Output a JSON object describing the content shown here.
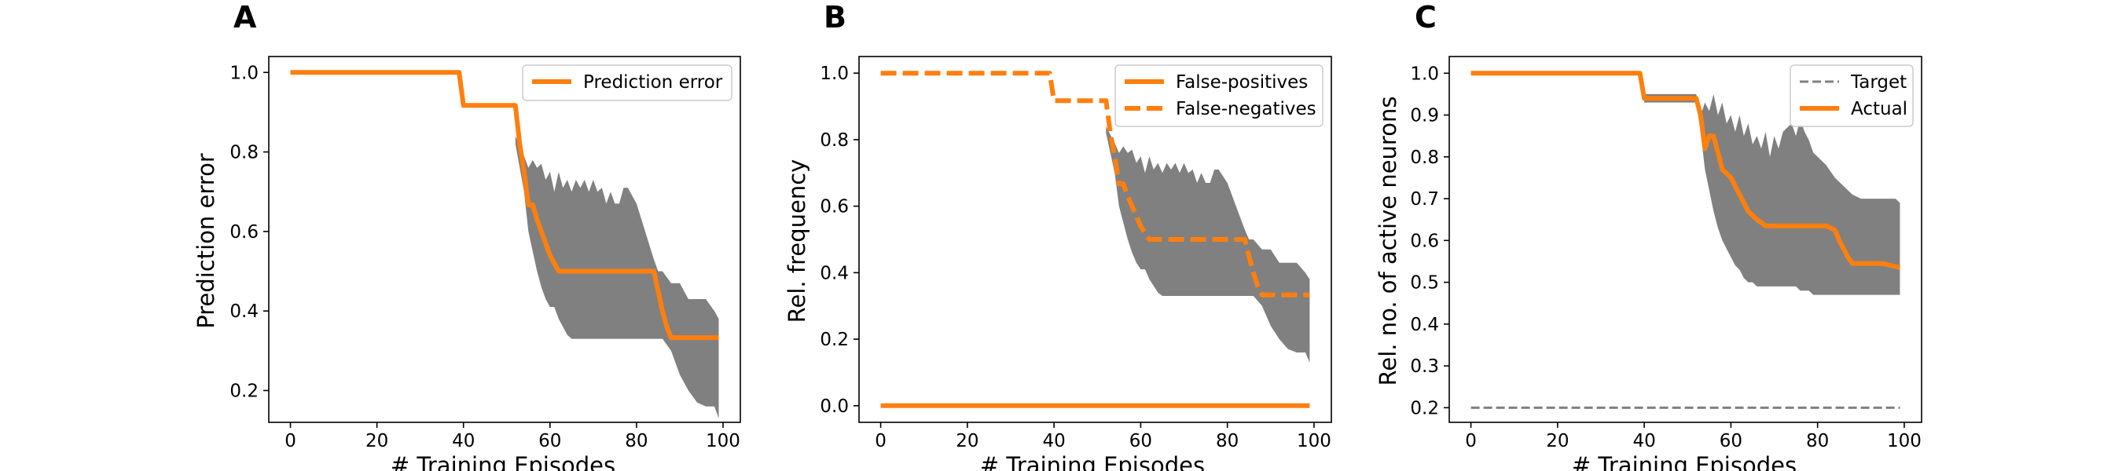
{
  "figure": {
    "panels": [
      {
        "letter": "A",
        "xlabel": "# Training Episodes",
        "ylabel": "Prediction error",
        "legend": [
          {
            "label": "Prediction error",
            "style": "solid",
            "color": "#ff7f0e"
          }
        ]
      },
      {
        "letter": "B",
        "xlabel": "# Training Episodes",
        "ylabel": "Rel. frequency",
        "legend": [
          {
            "label": "False-positives",
            "style": "solid",
            "color": "#ff7f0e"
          },
          {
            "label": "False-negatives",
            "style": "dashed",
            "color": "#ff7f0e"
          }
        ]
      },
      {
        "letter": "C",
        "xlabel": "# Training Episodes",
        "ylabel": "Rel. no. of active neurons",
        "legend": [
          {
            "label": "Target",
            "style": "dashed-thin",
            "color": "#808080"
          },
          {
            "label": "Actual",
            "style": "solid",
            "color": "#ff7f0e"
          }
        ]
      }
    ]
  },
  "chart_data": [
    {
      "type": "line",
      "panel": "A",
      "xlabel": "# Training Episodes",
      "ylabel": "Prediction error",
      "xlim": [
        -5,
        104
      ],
      "ylim": [
        0.12,
        1.04
      ],
      "xticks": [
        0,
        20,
        40,
        60,
        80,
        100
      ],
      "yticks": [
        0.2,
        0.4,
        0.6,
        0.8,
        1.0
      ],
      "legend_position": "top-right",
      "series": [
        {
          "name": "Prediction error",
          "color": "#ff7f0e",
          "style": "solid",
          "x": [
            0,
            39,
            40,
            52,
            53,
            54,
            55,
            56,
            57,
            58,
            60,
            62,
            64,
            66,
            70,
            75,
            80,
            84,
            85,
            86,
            87,
            88,
            90,
            95,
            99
          ],
          "y": [
            1.0,
            1.0,
            0.917,
            0.917,
            0.82,
            0.75,
            0.667,
            0.667,
            0.63,
            0.6,
            0.54,
            0.5,
            0.5,
            0.5,
            0.5,
            0.5,
            0.5,
            0.5,
            0.45,
            0.4,
            0.36,
            0.333,
            0.333,
            0.333,
            0.333
          ]
        }
      ],
      "bands": [
        {
          "color": "#808080",
          "x": [
            52,
            54,
            55,
            56,
            57,
            58,
            59,
            60,
            61,
            62,
            63,
            64,
            65,
            66,
            67,
            68,
            69,
            70,
            71,
            72,
            73,
            74,
            75,
            76,
            77,
            78,
            80,
            82,
            84,
            85,
            86,
            88,
            90,
            92,
            94,
            96,
            98,
            99
          ],
          "upper": [
            0.84,
            0.79,
            0.76,
            0.78,
            0.76,
            0.77,
            0.73,
            0.75,
            0.7,
            0.75,
            0.71,
            0.73,
            0.7,
            0.73,
            0.71,
            0.73,
            0.7,
            0.73,
            0.7,
            0.71,
            0.67,
            0.7,
            0.67,
            0.67,
            0.71,
            0.71,
            0.67,
            0.6,
            0.53,
            0.5,
            0.5,
            0.47,
            0.47,
            0.43,
            0.43,
            0.43,
            0.4,
            0.38
          ],
          "lower": [
            0.82,
            0.7,
            0.6,
            0.55,
            0.5,
            0.46,
            0.43,
            0.41,
            0.41,
            0.38,
            0.36,
            0.34,
            0.33,
            0.33,
            0.33,
            0.33,
            0.33,
            0.33,
            0.33,
            0.33,
            0.33,
            0.33,
            0.33,
            0.33,
            0.33,
            0.33,
            0.33,
            0.33,
            0.33,
            0.33,
            0.33,
            0.3,
            0.24,
            0.2,
            0.17,
            0.16,
            0.16,
            0.13
          ]
        }
      ]
    },
    {
      "type": "line",
      "panel": "B",
      "xlabel": "# Training Episodes",
      "ylabel": "Rel. frequency",
      "xlim": [
        -5,
        104
      ],
      "ylim": [
        -0.05,
        1.05
      ],
      "xticks": [
        0,
        20,
        40,
        60,
        80,
        100
      ],
      "yticks": [
        0.0,
        0.2,
        0.4,
        0.6,
        0.8,
        1.0
      ],
      "legend_position": "top-right",
      "series": [
        {
          "name": "False-positives",
          "color": "#ff7f0e",
          "style": "solid",
          "x": [
            0,
            99
          ],
          "y": [
            0.0,
            0.0
          ]
        },
        {
          "name": "False-negatives",
          "color": "#ff7f0e",
          "style": "dashed",
          "x": [
            0,
            39,
            40,
            52,
            53,
            54,
            55,
            56,
            57,
            58,
            60,
            62,
            64,
            66,
            70,
            75,
            80,
            84,
            85,
            86,
            87,
            88,
            90,
            95,
            99
          ],
          "y": [
            1.0,
            1.0,
            0.917,
            0.917,
            0.82,
            0.75,
            0.667,
            0.667,
            0.63,
            0.6,
            0.54,
            0.5,
            0.5,
            0.5,
            0.5,
            0.5,
            0.5,
            0.5,
            0.45,
            0.4,
            0.36,
            0.333,
            0.333,
            0.333,
            0.333
          ]
        }
      ],
      "bands": [
        {
          "color": "#808080",
          "x": [
            52,
            54,
            55,
            56,
            57,
            58,
            59,
            60,
            61,
            62,
            63,
            64,
            65,
            66,
            67,
            68,
            69,
            70,
            71,
            72,
            73,
            74,
            75,
            76,
            77,
            78,
            80,
            82,
            84,
            85,
            86,
            88,
            90,
            92,
            94,
            96,
            98,
            99
          ],
          "upper": [
            0.84,
            0.79,
            0.76,
            0.78,
            0.76,
            0.77,
            0.73,
            0.75,
            0.7,
            0.75,
            0.71,
            0.73,
            0.7,
            0.73,
            0.71,
            0.73,
            0.7,
            0.73,
            0.7,
            0.71,
            0.67,
            0.7,
            0.67,
            0.67,
            0.71,
            0.71,
            0.67,
            0.6,
            0.53,
            0.5,
            0.5,
            0.47,
            0.47,
            0.43,
            0.43,
            0.43,
            0.4,
            0.38
          ],
          "lower": [
            0.82,
            0.7,
            0.6,
            0.55,
            0.5,
            0.46,
            0.43,
            0.41,
            0.41,
            0.38,
            0.36,
            0.34,
            0.33,
            0.33,
            0.33,
            0.33,
            0.33,
            0.33,
            0.33,
            0.33,
            0.33,
            0.33,
            0.33,
            0.33,
            0.33,
            0.33,
            0.33,
            0.33,
            0.33,
            0.33,
            0.33,
            0.3,
            0.24,
            0.2,
            0.17,
            0.16,
            0.16,
            0.13
          ]
        }
      ]
    },
    {
      "type": "line",
      "panel": "C",
      "xlabel": "# Training Episodes",
      "ylabel": "Rel. no. of active neurons",
      "xlim": [
        -5,
        104
      ],
      "ylim": [
        0.165,
        1.04
      ],
      "xticks": [
        0,
        20,
        40,
        60,
        80,
        100
      ],
      "yticks": [
        0.2,
        0.3,
        0.4,
        0.5,
        0.6,
        0.7,
        0.8,
        0.9,
        1.0
      ],
      "legend_position": "top-right",
      "series": [
        {
          "name": "Target",
          "color": "#808080",
          "style": "dashed-thin",
          "x": [
            0,
            99
          ],
          "y": [
            0.2,
            0.2
          ]
        },
        {
          "name": "Actual",
          "color": "#ff7f0e",
          "style": "solid",
          "x": [
            0,
            39,
            40,
            52,
            53,
            54,
            55,
            56,
            57,
            58,
            59,
            60,
            62,
            64,
            66,
            68,
            70,
            75,
            80,
            82,
            84,
            85,
            86,
            87,
            88,
            90,
            95,
            99
          ],
          "y": [
            1.0,
            1.0,
            0.94,
            0.94,
            0.9,
            0.82,
            0.85,
            0.85,
            0.81,
            0.77,
            0.76,
            0.75,
            0.71,
            0.67,
            0.65,
            0.635,
            0.635,
            0.635,
            0.635,
            0.635,
            0.625,
            0.6,
            0.58,
            0.56,
            0.545,
            0.545,
            0.545,
            0.535
          ]
        }
      ],
      "bands": [
        {
          "color": "#808080",
          "x": [
            40,
            52,
            53,
            54,
            55,
            56,
            57,
            58,
            59,
            60,
            61,
            62,
            63,
            64,
            65,
            66,
            67,
            68,
            69,
            70,
            71,
            72,
            73,
            74,
            75,
            76,
            77,
            78,
            79,
            80,
            82,
            84,
            86,
            88,
            90,
            92,
            94,
            96,
            98,
            99
          ],
          "upper": [
            0.95,
            0.95,
            0.9,
            0.93,
            0.91,
            0.95,
            0.9,
            0.93,
            0.88,
            0.9,
            0.86,
            0.9,
            0.85,
            0.88,
            0.83,
            0.85,
            0.82,
            0.86,
            0.8,
            0.85,
            0.82,
            0.86,
            0.87,
            0.88,
            0.85,
            0.89,
            0.86,
            0.84,
            0.81,
            0.8,
            0.78,
            0.75,
            0.73,
            0.71,
            0.7,
            0.7,
            0.7,
            0.7,
            0.7,
            0.69
          ],
          "lower": [
            0.93,
            0.93,
            0.86,
            0.77,
            0.72,
            0.67,
            0.63,
            0.6,
            0.58,
            0.56,
            0.54,
            0.53,
            0.51,
            0.5,
            0.5,
            0.49,
            0.49,
            0.49,
            0.49,
            0.49,
            0.49,
            0.49,
            0.49,
            0.49,
            0.49,
            0.48,
            0.48,
            0.48,
            0.47,
            0.47,
            0.47,
            0.47,
            0.47,
            0.47,
            0.47,
            0.47,
            0.47,
            0.47,
            0.47,
            0.47
          ]
        }
      ]
    }
  ]
}
